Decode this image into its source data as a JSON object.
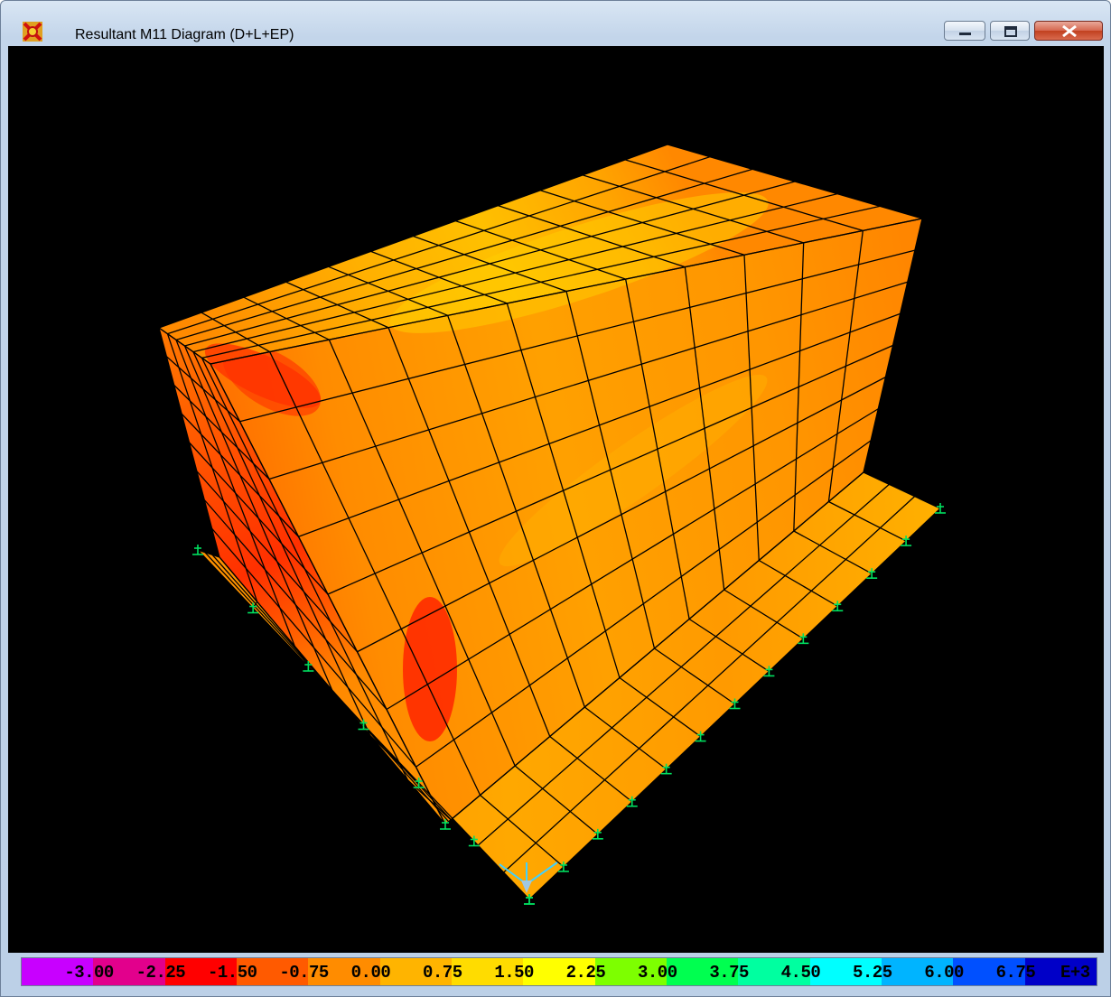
{
  "window": {
    "title": "Resultant M11 Diagram   (D+L+EP)",
    "icon": "sap2000-app-icon",
    "controls": [
      "minimize-icon",
      "maximize-icon",
      "close-icon"
    ]
  },
  "view": {
    "background": "#000000",
    "mesh_line_color": "#000000",
    "support_color": "#00e060",
    "axis_triad_color": "#40d0ff"
  },
  "legend": {
    "labels": [
      "-3.00",
      "-2.25",
      "-1.50",
      "-0.75",
      "0.00",
      "0.75",
      "1.50",
      "2.25",
      "3.00",
      "3.75",
      "4.50",
      "5.25",
      "6.00",
      "6.75"
    ],
    "exponent": "E+3",
    "colors": [
      "#c800ff",
      "#e2008c",
      "#ff0000",
      "#ff5a00",
      "#ff8c00",
      "#ffb400",
      "#ffdc00",
      "#ffff00",
      "#7dff00",
      "#00ff50",
      "#00ffa0",
      "#00ffff",
      "#00b4ff",
      "#0050ff",
      "#0000c8"
    ]
  }
}
